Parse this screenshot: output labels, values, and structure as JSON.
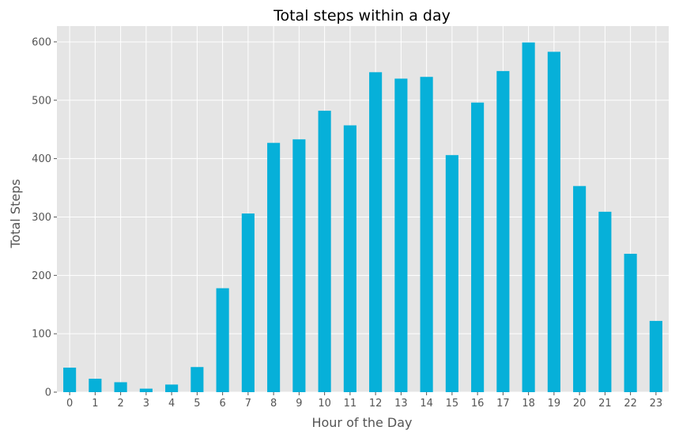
{
  "chart_data": {
    "type": "bar",
    "title": "Total steps within a day",
    "xlabel": "Hour of the Day",
    "ylabel": "Total Steps",
    "categories": [
      "0",
      "1",
      "2",
      "3",
      "4",
      "5",
      "6",
      "7",
      "8",
      "9",
      "10",
      "11",
      "12",
      "13",
      "14",
      "15",
      "16",
      "17",
      "18",
      "19",
      "20",
      "21",
      "22",
      "23"
    ],
    "values": [
      42,
      23,
      17,
      6,
      13,
      43,
      178,
      306,
      427,
      433,
      482,
      457,
      548,
      537,
      540,
      406,
      496,
      550,
      599,
      583,
      353,
      309,
      237,
      122
    ],
    "ylim": [
      0,
      627
    ],
    "yticks": [
      0,
      100,
      200,
      300,
      400,
      500,
      600
    ],
    "grid": true,
    "legend": "none",
    "colors": {
      "bar": "#06b0d9",
      "plot_background": "#e5e5e5",
      "grid": "#ffffff",
      "tick_text": "#555555",
      "title_text": "#000000"
    }
  }
}
